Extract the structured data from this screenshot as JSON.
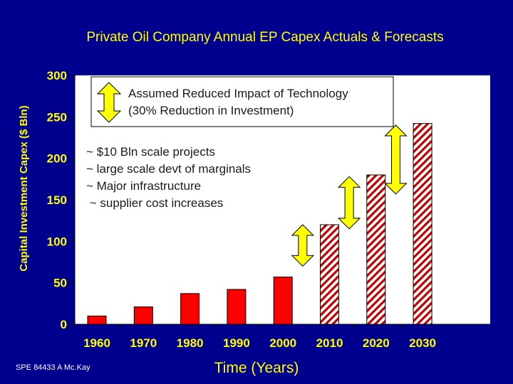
{
  "chart_data": {
    "type": "bar",
    "title": "Private Oil Company Annual EP Capex Actuals & Forecasts",
    "ylabel": "Capital Investment Capex ($ Bln)",
    "xlabel": "Time (Years)",
    "ylim": [
      0,
      300
    ],
    "yticks": [
      "0",
      "50",
      "100",
      "150",
      "200",
      "250",
      "300"
    ],
    "categories": [
      "1960",
      "1970",
      "1980",
      "1990",
      "2000",
      "2010",
      "2020",
      "2030"
    ],
    "series": [
      {
        "values": [
          10,
          21,
          37,
          42,
          57,
          null,
          null,
          null
        ],
        "style": "solid",
        "color": "#ff0000"
      },
      {
        "values": [
          null,
          null,
          null,
          null,
          null,
          120,
          180,
          242
        ],
        "style": "hatched",
        "color": "#c00000"
      }
    ],
    "ranges": [
      {
        "category": "2010",
        "low": 70,
        "high": 120
      },
      {
        "category": "2020",
        "low": 115,
        "high": 178
      },
      {
        "category": "2030",
        "low": 157,
        "high": 240
      }
    ],
    "annotations": {
      "technology_line1": "Assumed Reduced Impact of Technology",
      "technology_line2": "(30% Reduction in Investment)",
      "drivers": [
        "~ $10 Bln scale projects",
        "~ large scale devt of marginals",
        "~ Major infrastructure",
        " ~ supplier cost increases"
      ]
    },
    "grid": false,
    "legend": "none"
  },
  "source_note": "SPE 84433  A Mc.Kay",
  "colors": {
    "background": "#00008e",
    "text": "#ffff00",
    "bar_actual": "#ff0000",
    "bar_forecast": "#c00000",
    "arrow": "#ffff00",
    "plot_area": "#ffffff"
  }
}
